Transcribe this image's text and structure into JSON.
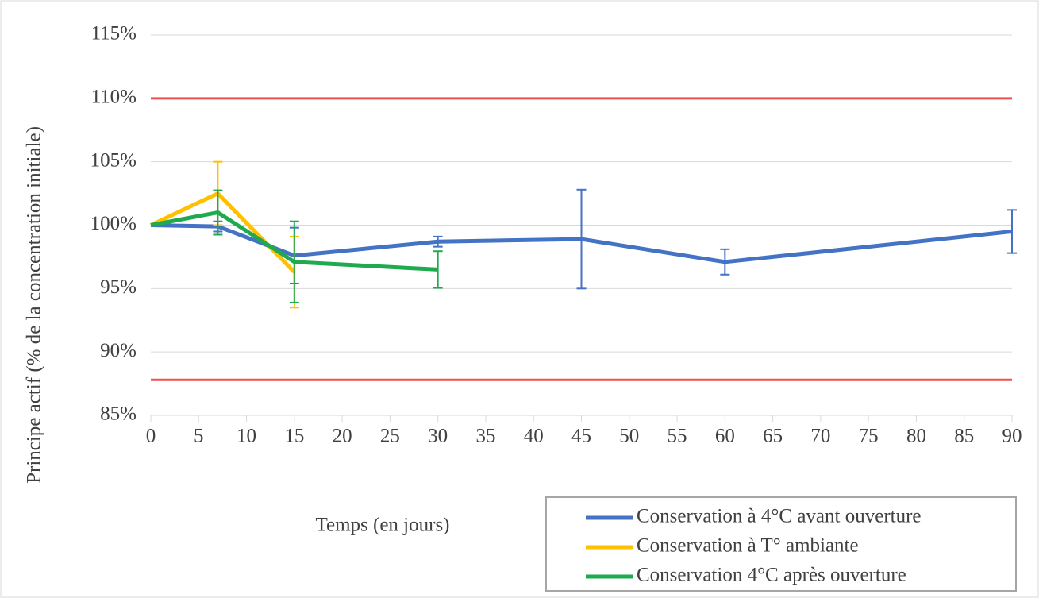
{
  "chart_data": {
    "type": "line",
    "x_label": "Temps (en jours)",
    "y_label": "Principe actif (% de la concentration initiale)",
    "xlim": [
      0,
      90
    ],
    "xticks": [
      0,
      5,
      10,
      15,
      20,
      25,
      30,
      35,
      40,
      45,
      50,
      55,
      60,
      65,
      70,
      75,
      80,
      85,
      90
    ],
    "ylim": [
      85,
      115
    ],
    "yticks": [
      {
        "value": 85,
        "label": "85%"
      },
      {
        "value": 90,
        "label": "90%"
      },
      {
        "value": 95,
        "label": "95%"
      },
      {
        "value": 100,
        "label": "100%"
      },
      {
        "value": 105,
        "label": "105%"
      },
      {
        "value": 110,
        "label": "110%"
      },
      {
        "value": 115,
        "label": "115%"
      }
    ],
    "grid": true,
    "reference_lines": {
      "color": "#f05050",
      "values": [
        110,
        87.8
      ]
    },
    "legend": "bottom-right",
    "series": [
      {
        "name": "Conservation à 4°C avant ouverture",
        "color": "#4472c4",
        "x": [
          0,
          7,
          15,
          30,
          45,
          60,
          90
        ],
        "values": [
          100,
          99.9,
          97.6,
          98.7,
          98.9,
          97.1,
          99.5
        ],
        "errors": [
          null,
          0.4,
          2.2,
          0.4,
          3.9,
          1.0,
          1.7
        ]
      },
      {
        "name": "Conservation à T° ambiante",
        "color": "#ffc000",
        "x": [
          0,
          7,
          15
        ],
        "values": [
          100,
          102.5,
          96.3
        ],
        "errors": [
          null,
          2.5,
          2.8
        ]
      },
      {
        "name": "Conservation 4°C après ouverture",
        "color": "#1faa4f",
        "x": [
          0,
          7,
          15,
          30
        ],
        "values": [
          100,
          101.0,
          97.1,
          96.5
        ],
        "errors": [
          null,
          1.75,
          3.2,
          1.45
        ]
      }
    ]
  }
}
